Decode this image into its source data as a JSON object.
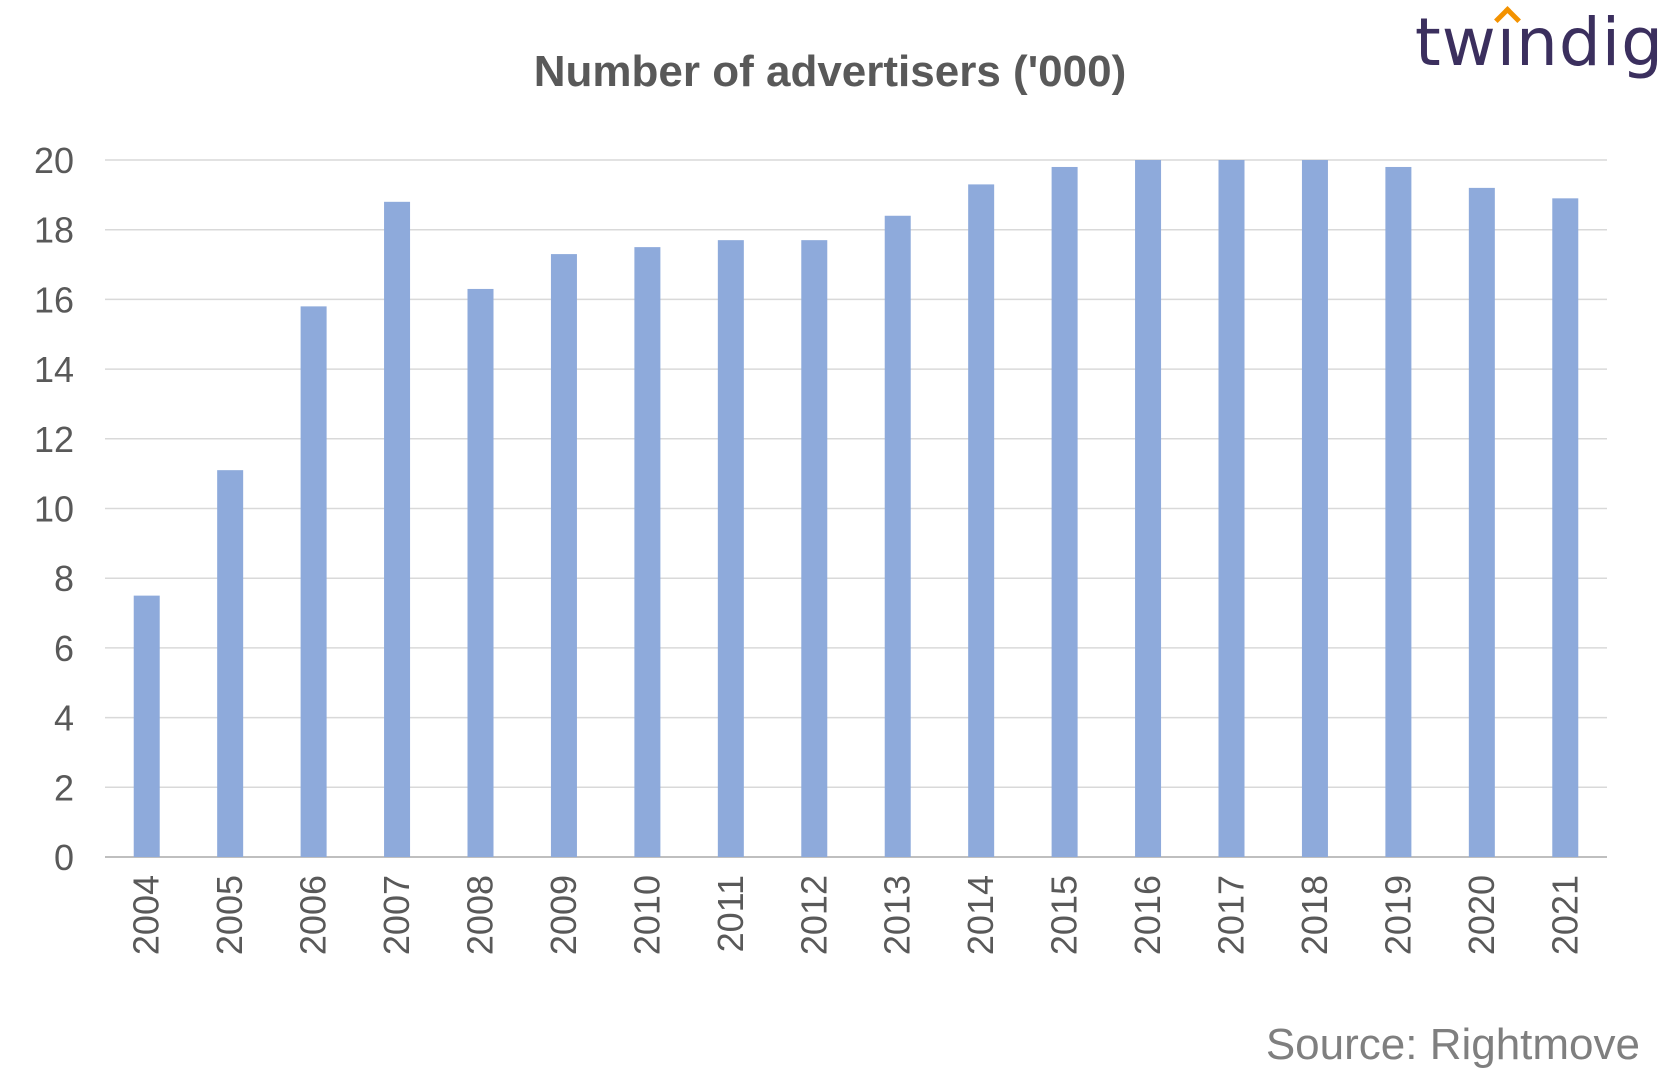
{
  "logo": {
    "text_before": "tw",
    "text_i": "ı",
    "text_after": "ndig",
    "accent_color": "#f39200",
    "text_color": "#3b2f5e"
  },
  "source": "Source: Rightmove",
  "chart_data": {
    "type": "bar",
    "title": "Number of advertisers ('000)",
    "xlabel": "",
    "ylabel": "",
    "categories": [
      "2004",
      "2005",
      "2006",
      "2007",
      "2008",
      "2009",
      "2010",
      "2011",
      "2012",
      "2013",
      "2014",
      "2015",
      "2016",
      "2017",
      "2018",
      "2019",
      "2020",
      "2021"
    ],
    "values": [
      7.5,
      11.1,
      15.8,
      18.8,
      16.3,
      17.3,
      17.5,
      17.7,
      17.7,
      18.4,
      19.3,
      19.8,
      20.1,
      20.1,
      20.1,
      19.8,
      19.2,
      18.9
    ],
    "ylim": [
      0,
      20
    ],
    "yticks": [
      0,
      2,
      4,
      6,
      8,
      10,
      12,
      14,
      16,
      18,
      20
    ],
    "grid": true,
    "bar_color": "#8eaadb",
    "grid_color": "#d9d9d9"
  }
}
